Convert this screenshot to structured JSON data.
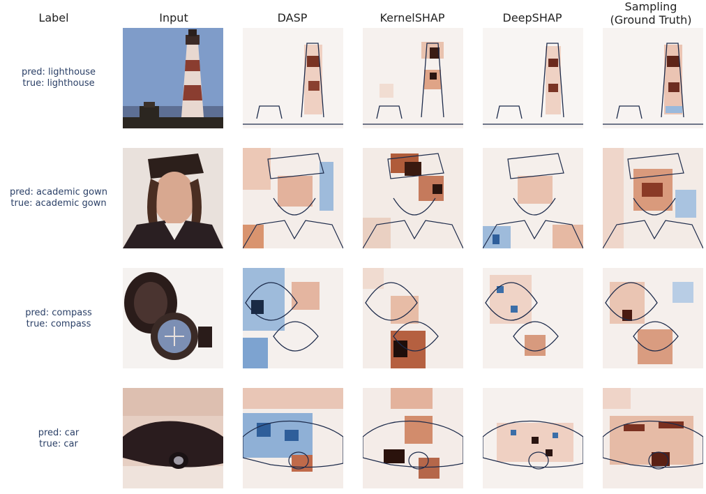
{
  "columns": {
    "label": "Label",
    "input": "Input",
    "dasp": "DASP",
    "kernelshap": "KernelSHAP",
    "deepshap": "DeepSHAP",
    "sampling_line1": "Sampling",
    "sampling_line2": "(Ground Truth)"
  },
  "rows": [
    {
      "pred": "pred: lighthouse",
      "true": "true: lighthouse"
    },
    {
      "pred": "pred: academic gown",
      "true": "true: academic gown"
    },
    {
      "pred": "pred: compass",
      "true": "true: compass"
    },
    {
      "pred": "pred:  car",
      "true": "true: car"
    }
  ],
  "colors": {
    "positive": "#b5532e",
    "negative": "#4a7fb8",
    "outline": "#1c2a4a"
  }
}
